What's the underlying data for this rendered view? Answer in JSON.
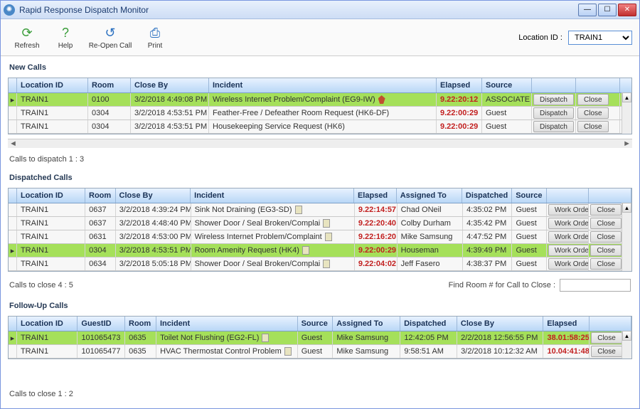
{
  "title": "Rapid Response Dispatch Monitor",
  "toolbar": {
    "refresh": "Refresh",
    "help": "Help",
    "reopen": "Re-Open Call",
    "print": "Print",
    "location_lbl": "Location ID :",
    "location_val": "TRAIN1"
  },
  "newcalls": {
    "heading": "New Calls",
    "cols": [
      "Location ID",
      "Room",
      "Close By",
      "Incident",
      "Elapsed",
      "Source"
    ],
    "widths": [
      100,
      60,
      110,
      320,
      64,
      70
    ],
    "rows": [
      {
        "sel": true,
        "loc": "TRAIN1",
        "room": "0100",
        "close": "3/2/2018 4:49:08 PM",
        "incident": "Wireless Internet Problem/Complaint (EG9-IW)",
        "pin": true,
        "elapsed": "9.22:20:12",
        "source": "ASSOCIATE"
      },
      {
        "sel": false,
        "loc": "TRAIN1",
        "room": "0304",
        "close": "3/2/2018 4:53:51 PM",
        "incident": "Feather-Free / Defeather Room Request (HK6-DF)",
        "pin": false,
        "elapsed": "9.22:00:29",
        "source": "Guest"
      },
      {
        "sel": false,
        "loc": "TRAIN1",
        "room": "0304",
        "close": "3/2/2018 4:53:51 PM",
        "incident": "Housekeeping Service Request (HK6)",
        "pin": false,
        "elapsed": "9.22:00:29",
        "source": "Guest"
      }
    ],
    "actions": [
      "Dispatch",
      "Close"
    ],
    "status": "Calls to dispatch  1 : 3"
  },
  "dispatched": {
    "heading": "Dispatched Calls",
    "cols": [
      "Location ID",
      "Room",
      "Close By",
      "Incident",
      "Elapsed",
      "Assigned To",
      "Dispatched",
      "Source"
    ],
    "widths": [
      100,
      44,
      110,
      240,
      62,
      96,
      72,
      50
    ],
    "rows": [
      {
        "sel": false,
        "loc": "TRAIN1",
        "room": "0637",
        "close": "3/2/2018 4:39:24 PM",
        "incident": "Sink Not Draining (EG3-SD)",
        "elapsed": "9.22:14:57",
        "assigned": "Chad ONeil",
        "disp": "4:35:02 PM",
        "source": "Guest"
      },
      {
        "sel": false,
        "loc": "TRAIN1",
        "room": "0637",
        "close": "3/2/2018 4:48:40 PM",
        "incident": "Shower Door / Seal Broken/Complai",
        "elapsed": "9.22:20:40",
        "assigned": "Colby Durham",
        "disp": "4:35:42 PM",
        "source": "Guest"
      },
      {
        "sel": false,
        "loc": "TRAIN1",
        "room": "0631",
        "close": "3/2/2018 4:53:00 PM",
        "incident": "Wireless Internet Problem/Complaint",
        "elapsed": "9.22:16:20",
        "assigned": "Mike Samsung",
        "disp": "4:47:52 PM",
        "source": "Guest"
      },
      {
        "sel": true,
        "loc": "TRAIN1",
        "room": "0304",
        "close": "3/2/2018 4:53:51 PM",
        "incident": "Room Amenity Request (HK4)",
        "elapsed": "9.22:00:29",
        "assigned": "Houseman",
        "disp": "4:39:49 PM",
        "source": "Guest"
      },
      {
        "sel": false,
        "loc": "TRAIN1",
        "room": "0634",
        "close": "3/2/2018 5:05:18 PM",
        "incident": "Shower Door / Seal Broken/Complai",
        "elapsed": "9.22:04:02",
        "assigned": "Jeff Fasero",
        "disp": "4:38:37 PM",
        "source": "Guest"
      }
    ],
    "actions": [
      "Work Order",
      "Close"
    ],
    "status": "Calls to close  4 : 5",
    "find_lbl": "Find Room # for Call to Close :"
  },
  "followup": {
    "heading": "Follow-Up Calls",
    "cols": [
      "Location ID",
      "GuestID",
      "Room",
      "Incident",
      "Source",
      "Assigned To",
      "Dispatched",
      "Close By",
      "Elapsed"
    ],
    "widths": [
      90,
      70,
      46,
      210,
      52,
      100,
      84,
      128,
      68
    ],
    "rows": [
      {
        "sel": true,
        "loc": "TRAIN1",
        "guest": "101065473",
        "room": "0635",
        "incident": "Toilet Not Flushing (EG2-FL)",
        "source": "Guest",
        "assigned": "Mike Samsung",
        "disp": "12:42:05 PM",
        "close": "2/2/2018 12:56:55 PM",
        "elapsed": "38.01:58:25"
      },
      {
        "sel": false,
        "loc": "TRAIN1",
        "guest": "101065477",
        "room": "0635",
        "incident": "HVAC Thermostat Control Problem",
        "source": "Guest",
        "assigned": "Mike Samsung",
        "disp": "9:58:51 AM",
        "close": "3/2/2018 10:12:32 AM",
        "elapsed": "10.04:41:48"
      }
    ],
    "actions": [
      "Close"
    ],
    "status": "Calls to close  1 : 2"
  }
}
